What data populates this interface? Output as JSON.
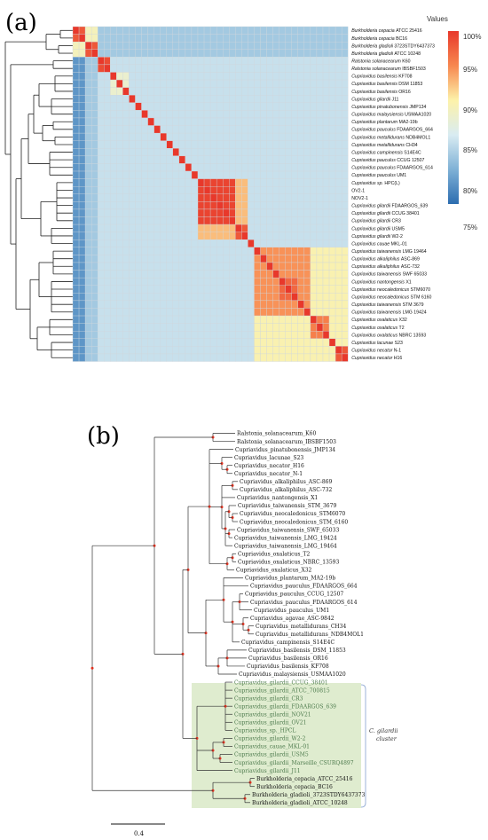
{
  "panel_a": {
    "letter": "(a)",
    "legend": {
      "title": "Values",
      "ticks": [
        "100%",
        "95%",
        "90%",
        "85%",
        "80%",
        "75%"
      ]
    },
    "rows": [
      {
        "genus": "Burkholderia cepacia",
        "strain": "ATCC 25416"
      },
      {
        "genus": "Burkholderia cepacia",
        "strain": "BC16"
      },
      {
        "genus": "Burkholderia gladioli",
        "strain": "3723STDY6437373"
      },
      {
        "genus": "Burkholderia gladioli",
        "strain": "ATCC 10248"
      },
      {
        "genus": "Ralstonia solanacearum",
        "strain": "K60"
      },
      {
        "genus": "Ralstonia solanacearum",
        "strain": "IBSBF1503"
      },
      {
        "genus": "Cupriavidus basilensis",
        "strain": "KF708"
      },
      {
        "genus": "Cupriavidus basilensis",
        "strain": "DSM 11853"
      },
      {
        "genus": "Cupriavidus basilensis",
        "strain": "OR16"
      },
      {
        "genus": "Cupriavidus gilardii",
        "strain": "J11"
      },
      {
        "genus": "Cupriavidus pinatubonensis",
        "strain": "JMP134"
      },
      {
        "genus": "Cupriavidus malaysiensis",
        "strain": "USMAA1020"
      },
      {
        "genus": "Cupriavidus plantarum",
        "strain": "MA2-19b"
      },
      {
        "genus": "Cupriavidus pauculus",
        "strain": "FDAARGOS_664"
      },
      {
        "genus": "Cupriavidus metallidurans",
        "strain": "NDB4MOL1"
      },
      {
        "genus": "Cupriavidus metallidurans",
        "strain": "CH34"
      },
      {
        "genus": "Cupriavidus campinensis",
        "strain": "S14E4C"
      },
      {
        "genus": "Cupriavidus pauculus",
        "strain": "CCUG 12507"
      },
      {
        "genus": "Cupriavidus pauculus",
        "strain": "FDAARGOS_614"
      },
      {
        "genus": "Cupriavidus pauculus",
        "strain": "UM1"
      },
      {
        "genus": "Cupriavidus sp.",
        "strain": "HPC(L)"
      },
      {
        "genus": "",
        "strain": "OV2-1"
      },
      {
        "genus": "",
        "strain": "NOV2-1"
      },
      {
        "genus": "Cupriavidus gilardii",
        "strain": "FDAARGOS_639"
      },
      {
        "genus": "Cupriavidus gilardii",
        "strain": "CCUG 38401"
      },
      {
        "genus": "Cupriavidus gilardii",
        "strain": "CR3"
      },
      {
        "genus": "Cupriavidus gilardii",
        "strain": "USM5"
      },
      {
        "genus": "Cupriavidus gilardii",
        "strain": "W2-2"
      },
      {
        "genus": "Cupriavidus cauae",
        "strain": "MKL-01"
      },
      {
        "genus": "Cupriavidus taiwanensis",
        "strain": "LMG 19464"
      },
      {
        "genus": "Cupriavidus alkaliphilus",
        "strain": "ASC-869"
      },
      {
        "genus": "Cupriavidus alkaliphilus",
        "strain": "ASC-732"
      },
      {
        "genus": "Cupriavidus taiwanensis",
        "strain": "SWF 65033"
      },
      {
        "genus": "Cupriavidus nantongensis",
        "strain": "X1"
      },
      {
        "genus": "Cupriavidus neocaledonicus",
        "strain": "STM6070"
      },
      {
        "genus": "Cupriavidus neocaledonicus",
        "strain": "STM 6160"
      },
      {
        "genus": "Cupriavidus taiwanensis",
        "strain": "STM 3679"
      },
      {
        "genus": "Cupriavidus taiwanensis",
        "strain": "LMG 19424"
      },
      {
        "genus": "Cupriavidus oxalaticus",
        "strain": "X32"
      },
      {
        "genus": "Cupriavidus oxalaticus",
        "strain": "T2"
      },
      {
        "genus": "Cupriavidus oxalaticus",
        "strain": "NBRC 13593"
      },
      {
        "genus": "Cupriavidus lacunae",
        "strain": "S23"
      },
      {
        "genus": "Cupriavidus necator",
        "strain": "N-1"
      },
      {
        "genus": "Cupriavidus necator",
        "strain": "H16"
      }
    ],
    "blocks": [
      {
        "start": 0,
        "end": 1,
        "level": 0.92
      },
      {
        "start": 2,
        "end": 3,
        "level": 0.92
      },
      {
        "start": 0,
        "end": 3,
        "level": 0.55
      },
      {
        "start": 4,
        "end": 5,
        "level": 0.95
      },
      {
        "start": 6,
        "end": 8,
        "level": 0.5
      },
      {
        "start": 20,
        "end": 27,
        "level": 0.7
      },
      {
        "start": 20,
        "end": 25,
        "level": 0.97
      },
      {
        "start": 26,
        "end": 27,
        "level": 0.92
      },
      {
        "start": 29,
        "end": 43,
        "level": 0.58
      },
      {
        "start": 29,
        "end": 37,
        "level": 0.78
      },
      {
        "start": 33,
        "end": 35,
        "level": 0.88
      },
      {
        "start": 38,
        "end": 40,
        "level": 0.82
      },
      {
        "start": 42,
        "end": 43,
        "level": 0.92
      }
    ]
  },
  "panel_b": {
    "letter": "(b)",
    "tips": [
      {
        "label": "Ralstonia_solanacearum_K60",
        "green": false
      },
      {
        "label": "Ralstonia_solanacearum_IBSBF1503",
        "green": false
      },
      {
        "label": "Cupriavidus_pinatubonensis_JMP134",
        "green": false
      },
      {
        "label": "Cupriavidus_lacunae_S23",
        "green": false
      },
      {
        "label": "Cupriavidus_necator_H16",
        "green": false
      },
      {
        "label": "Cupriavidus_necator_N-1",
        "green": false
      },
      {
        "label": "Cupriavidus_alkaliphilus_ASC-869",
        "green": false
      },
      {
        "label": "Cupriavidus_alkaliphilus_ASC-732",
        "green": false
      },
      {
        "label": "Cupriavidus_nantongensis_X1",
        "green": false
      },
      {
        "label": "Cupriavidus_taiwanensis_STM_3679",
        "green": false
      },
      {
        "label": "Cupriavidus_neocaledonicus_STM6070",
        "green": false
      },
      {
        "label": "Cupriavidus_neocaledonicus_STM_6160",
        "green": false
      },
      {
        "label": "Cupriavidus_taiwanensis_SWF_65033",
        "green": false
      },
      {
        "label": "Cupriavidus_taiwanensis_LMG_19424",
        "green": false
      },
      {
        "label": "Cupriavidus_taiwanensis_LMG_19464",
        "green": false
      },
      {
        "label": "Cupriavidus_oxalaticus_T2",
        "green": false
      },
      {
        "label": "Cupriavidus_oxalaticus_NBRC_13593",
        "green": false
      },
      {
        "label": "Cupriavidus_oxalaticus_X32",
        "green": false
      },
      {
        "label": "Cupriavidus_plantarum_MA2-19b",
        "green": false
      },
      {
        "label": "Cupriavidus_pauculus_FDAARGOS_664",
        "green": false
      },
      {
        "label": "Cupriavidus_pauculus_CCUG_12507",
        "green": false
      },
      {
        "label": "Cupriavidus_pauculus_FDAARGOS_614",
        "green": false
      },
      {
        "label": "Cupriavidus_pauculus_UM1",
        "green": false
      },
      {
        "label": "Cupriavidus_agavae_ASC-9842",
        "green": false
      },
      {
        "label": "Cupriavidus_metallidurans_CH34",
        "green": false
      },
      {
        "label": "Cupriavidus_metallidurans_NDB4MOL1",
        "green": false
      },
      {
        "label": "Cupriavidus_campinensis_S14E4C",
        "green": false
      },
      {
        "label": "Cupriavidus_basilensis_DSM_11853",
        "green": false
      },
      {
        "label": "Cupriavidus_basilensis_OR16",
        "green": false
      },
      {
        "label": "Cupriavidus_basilensis_KF708",
        "green": false
      },
      {
        "label": "Cupriavidus_malaysiensis_USMAA1020",
        "green": false
      },
      {
        "label": "Cupriavidus_gilardii_CCUG_38401",
        "green": true
      },
      {
        "label": "Cupriavidus_gilardii_ATCC_700815",
        "green": true
      },
      {
        "label": "Cupriavidus_gilardii_CR3",
        "green": true
      },
      {
        "label": "Cupriavidus_gilardii_FDAARGOS_639",
        "green": true
      },
      {
        "label": "Cupriavidus_gilardii_NOV21",
        "green": true
      },
      {
        "label": "Cupriavidus_gilardii_OV21",
        "green": true
      },
      {
        "label": "Cupriavidus_sp._HPCL",
        "green": true
      },
      {
        "label": "Cupriavidus_gilardii_W2-2",
        "green": true
      },
      {
        "label": "Cupriavidus_cauae_MKL-01",
        "green": true
      },
      {
        "label": "Cupriavidus_gilardii_USM5",
        "green": true
      },
      {
        "label": "Cupriavidus_gilardii_Marseille_CSURQ4897",
        "green": true
      },
      {
        "label": "Cupriavidus_gilardii_J11",
        "green": true
      },
      {
        "label": "Burkholderia_cepacia_ATCC_25416",
        "green": false
      },
      {
        "label": "Burkholderia_cepacia_BC16",
        "green": false
      },
      {
        "label": "Burkholderia_gladioli_3723STDY6437373",
        "green": false
      },
      {
        "label": "Burkholderia_gladioli_ATCC_10248",
        "green": false
      }
    ],
    "cluster_label_line1": "C. gilardii",
    "cluster_label_line2": "cluster",
    "scale_label": "0.4",
    "colors": {
      "cluster_fill": "#dfeccf",
      "cluster_border": "#9db3d8",
      "node_dot": "#e0301e",
      "green_text": "#4c7a4c"
    }
  }
}
